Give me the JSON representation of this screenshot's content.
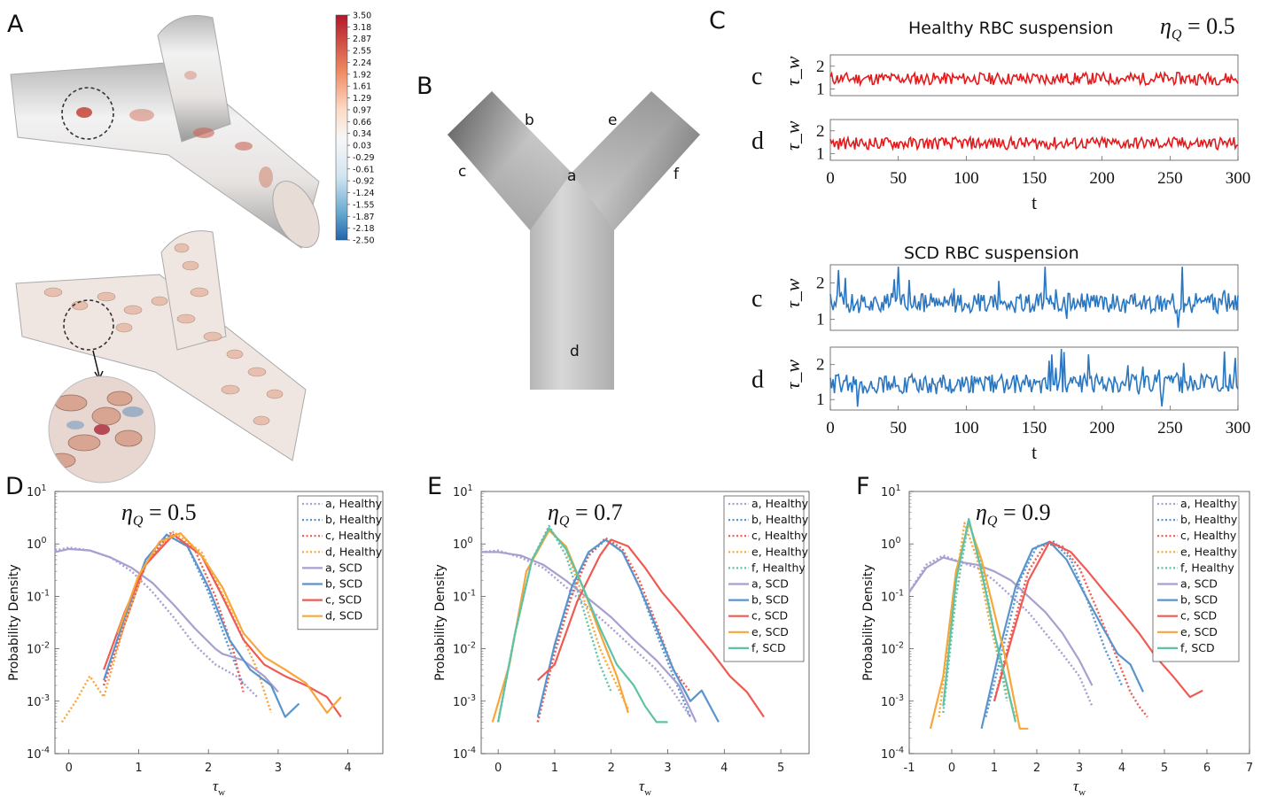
{
  "panel_labels": [
    "A",
    "B",
    "C",
    "D",
    "E",
    "F"
  ],
  "colorbar": {
    "ticks": [
      "3.50",
      "3.18",
      "2.87",
      "2.55",
      "2.24",
      "1.92",
      "1.61",
      "1.29",
      "0.97",
      "0.66",
      "0.34",
      "0.03",
      "-0.29",
      "-0.61",
      "-0.92",
      "-1.24",
      "-1.55",
      "-1.87",
      "-2.18",
      "-2.50"
    ]
  },
  "bifurcation": {
    "points": [
      "a",
      "b",
      "c",
      "d",
      "e",
      "f"
    ]
  },
  "timeseries": {
    "healthy_title": "Healthy RBC suspension",
    "scd_title": "SCD RBC suspension",
    "eta_label": "η_Q = 0.5",
    "ylabel": "τ_w",
    "xlabel": "t",
    "rows": [
      {
        "label": "c",
        "group": "Healthy",
        "color": "#e31a1c"
      },
      {
        "label": "d",
        "group": "Healthy",
        "color": "#e31a1c"
      },
      {
        "label": "c",
        "group": "SCD",
        "color": "#2b76c0"
      },
      {
        "label": "d",
        "group": "SCD",
        "color": "#2b76c0"
      }
    ],
    "xticks": [
      "0",
      "50",
      "100",
      "150",
      "200",
      "250",
      "300"
    ],
    "yticks": [
      "1",
      "2"
    ]
  },
  "colors": {
    "a": "#a89fd0",
    "b": "#5a94cd",
    "c": "#ef5a52",
    "d": "#f6a63a",
    "e": "#f6a63a",
    "f": "#5ec3a6",
    "healthy_ts": "#e31a1c",
    "scd_ts": "#2b76c0"
  },
  "chart_data": [
    {
      "type": "line",
      "panel": "D",
      "title": "η_Q = 0.5",
      "xlabel": "τ_w",
      "ylabel": "Probability Density",
      "yscale": "log",
      "xlim": [
        -0.2,
        4.5
      ],
      "ylim": [
        0.0001,
        10
      ],
      "xticks": [
        "0",
        "1",
        "2",
        "3",
        "4"
      ],
      "yticks": [
        "10^-4",
        "10^-3",
        "10^-2",
        "10^-1",
        "10^0",
        "10^1"
      ],
      "legend": [
        "a, Healthy",
        "b, Healthy",
        "c, Healthy",
        "d, Healthy",
        "a, SCD",
        "b, SCD",
        "c, SCD",
        "d, SCD"
      ],
      "series": [
        {
          "name": "a, Healthy",
          "key": "a",
          "style": "dotted",
          "x": [
            -0.2,
            0,
            0.3,
            0.6,
            0.9,
            1.2,
            1.5,
            1.8,
            2.1,
            2.4,
            2.7
          ],
          "y": [
            0.75,
            0.85,
            0.75,
            0.55,
            0.3,
            0.12,
            0.04,
            0.012,
            0.005,
            0.003,
            0.0012
          ]
        },
        {
          "name": "b, Healthy",
          "key": "b",
          "style": "dotted",
          "x": [
            0.5,
            0.8,
            1.1,
            1.4,
            1.7,
            2.0,
            2.3,
            2.5
          ],
          "y": [
            0.002,
            0.03,
            0.4,
            1.5,
            0.9,
            0.12,
            0.01,
            0.002
          ]
        },
        {
          "name": "c, Healthy",
          "key": "c",
          "style": "dotted",
          "x": [
            0.5,
            0.8,
            1.1,
            1.45,
            1.8,
            2.1,
            2.35,
            2.5
          ],
          "y": [
            0.002,
            0.03,
            0.4,
            1.6,
            0.8,
            0.1,
            0.01,
            0.0015
          ]
        },
        {
          "name": "d, Healthy",
          "key": "d",
          "style": "dotted",
          "x": [
            -0.1,
            0.1,
            0.3,
            0.5,
            0.8,
            1.1,
            1.5,
            1.9,
            2.3,
            2.7,
            2.9
          ],
          "y": [
            0.0004,
            0.001,
            0.003,
            0.0012,
            0.03,
            0.4,
            1.7,
            0.7,
            0.06,
            0.004,
            0.0006
          ]
        },
        {
          "name": "a, SCD",
          "key": "a",
          "style": "solid",
          "x": [
            -0.2,
            0,
            0.3,
            0.6,
            0.9,
            1.2,
            1.5,
            1.8,
            2.1,
            2.2,
            2.5,
            2.8,
            3.0
          ],
          "y": [
            0.7,
            0.8,
            0.75,
            0.55,
            0.35,
            0.18,
            0.07,
            0.025,
            0.01,
            0.008,
            0.006,
            0.003,
            0.0015
          ]
        },
        {
          "name": "b, SCD",
          "key": "b",
          "style": "solid",
          "x": [
            0.5,
            0.8,
            1.1,
            1.4,
            1.7,
            2.0,
            2.3,
            2.6,
            2.9,
            3.1,
            3.3
          ],
          "y": [
            0.0025,
            0.04,
            0.5,
            1.5,
            0.9,
            0.15,
            0.015,
            0.004,
            0.002,
            0.0005,
            0.0009
          ]
        },
        {
          "name": "c, SCD",
          "key": "c",
          "style": "solid",
          "x": [
            0.5,
            0.8,
            1.1,
            1.5,
            1.9,
            2.2,
            2.5,
            2.8,
            3.1,
            3.4,
            3.7,
            3.9
          ],
          "y": [
            0.004,
            0.05,
            0.4,
            1.5,
            0.6,
            0.1,
            0.015,
            0.005,
            0.003,
            0.002,
            0.0012,
            0.0005
          ]
        },
        {
          "name": "d, SCD",
          "key": "d",
          "style": "solid",
          "x": [
            0.7,
            1.0,
            1.3,
            1.6,
            1.9,
            2.2,
            2.5,
            2.8,
            3.1,
            3.4,
            3.7,
            3.9
          ],
          "y": [
            0.02,
            0.25,
            1.1,
            1.6,
            0.6,
            0.15,
            0.02,
            0.007,
            0.004,
            0.0022,
            0.0006,
            0.0012
          ]
        }
      ]
    },
    {
      "type": "line",
      "panel": "E",
      "title": "η_Q = 0.7",
      "xlabel": "τ_w",
      "ylabel": "Probability Density",
      "yscale": "log",
      "xlim": [
        -0.3,
        5.5
      ],
      "ylim": [
        0.0001,
        10
      ],
      "xticks": [
        "0",
        "1",
        "2",
        "3",
        "4",
        "5"
      ],
      "yticks": [
        "10^-4",
        "10^-3",
        "10^-2",
        "10^-1",
        "10^0",
        "10^1"
      ],
      "legend": [
        "a, Healthy",
        "b, Healthy",
        "c, Healthy",
        "e, Healthy",
        "f, Healthy",
        "a, SCD",
        "b, SCD",
        "c, SCD",
        "e, SCD",
        "f, SCD"
      ],
      "series": [
        {
          "name": "a, Healthy",
          "key": "a",
          "style": "dotted",
          "x": [
            -0.3,
            0,
            0.4,
            0.8,
            1.2,
            1.6,
            2.0,
            2.4,
            2.8,
            3.1,
            3.4
          ],
          "y": [
            0.7,
            0.75,
            0.55,
            0.35,
            0.15,
            0.06,
            0.025,
            0.01,
            0.004,
            0.0015,
            0.0005
          ]
        },
        {
          "name": "b, Healthy",
          "key": "b",
          "style": "dotted",
          "x": [
            0.7,
            1.0,
            1.3,
            1.6,
            1.9,
            2.2,
            2.5,
            2.8,
            3.1,
            3.4
          ],
          "y": [
            0.0004,
            0.01,
            0.12,
            0.6,
            1.2,
            0.7,
            0.15,
            0.02,
            0.003,
            0.0005
          ]
        },
        {
          "name": "c, Healthy",
          "key": "c",
          "style": "dotted",
          "x": [
            0.7,
            1.0,
            1.3,
            1.6,
            1.9,
            2.2,
            2.5,
            2.8,
            3.1,
            3.4
          ],
          "y": [
            0.0004,
            0.008,
            0.1,
            0.6,
            1.3,
            0.8,
            0.2,
            0.03,
            0.004,
            0.0015
          ]
        },
        {
          "name": "e, Healthy",
          "key": "e",
          "style": "dotted",
          "x": [
            0,
            0.3,
            0.6,
            0.9,
            1.2,
            1.5,
            1.8,
            2.1,
            2.3
          ],
          "y": [
            0.0004,
            0.02,
            0.5,
            2.0,
            0.8,
            0.1,
            0.01,
            0.002,
            0.0007
          ]
        },
        {
          "name": "f, Healthy",
          "key": "f",
          "style": "dotted",
          "x": [
            0,
            0.3,
            0.6,
            0.9,
            1.2,
            1.5,
            1.8,
            2.0
          ],
          "y": [
            0.0004,
            0.02,
            0.5,
            2.2,
            0.6,
            0.06,
            0.005,
            0.0015
          ]
        },
        {
          "name": "a, SCD",
          "key": "a",
          "style": "solid",
          "x": [
            -0.3,
            0,
            0.4,
            0.8,
            1.2,
            1.6,
            2.0,
            2.4,
            2.8,
            3.2,
            3.5
          ],
          "y": [
            0.7,
            0.7,
            0.6,
            0.4,
            0.2,
            0.09,
            0.04,
            0.015,
            0.006,
            0.002,
            0.0004
          ]
        },
        {
          "name": "b, SCD",
          "key": "b",
          "style": "solid",
          "x": [
            0.7,
            1.0,
            1.3,
            1.6,
            1.9,
            2.2,
            2.5,
            2.8,
            3.1,
            3.4,
            3.6,
            3.9
          ],
          "y": [
            0.0005,
            0.012,
            0.15,
            0.7,
            1.2,
            0.7,
            0.15,
            0.025,
            0.004,
            0.001,
            0.0016,
            0.0004
          ]
        },
        {
          "name": "c, SCD",
          "key": "c",
          "style": "solid",
          "x": [
            0.7,
            1.0,
            1.4,
            1.8,
            2.0,
            2.3,
            2.6,
            2.9,
            3.2,
            3.5,
            3.8,
            4.1,
            4.4,
            4.7
          ],
          "y": [
            0.0025,
            0.005,
            0.08,
            0.6,
            1.2,
            0.9,
            0.35,
            0.12,
            0.05,
            0.02,
            0.008,
            0.003,
            0.0015,
            0.0005
          ]
        },
        {
          "name": "e, SCD",
          "key": "e",
          "style": "solid",
          "x": [
            -0.1,
            0.2,
            0.5,
            0.9,
            1.2,
            1.5,
            1.8,
            2.1,
            2.3
          ],
          "y": [
            0.0004,
            0.005,
            0.3,
            1.8,
            0.9,
            0.15,
            0.02,
            0.003,
            0.0006
          ]
        },
        {
          "name": "f, SCD",
          "key": "f",
          "style": "solid",
          "x": [
            0,
            0.3,
            0.6,
            0.9,
            1.2,
            1.5,
            1.8,
            2.1,
            2.4,
            2.6,
            2.8,
            3.0
          ],
          "y": [
            0.0004,
            0.02,
            0.5,
            2.0,
            0.8,
            0.15,
            0.025,
            0.005,
            0.002,
            0.0008,
            0.0004,
            0.0004
          ]
        }
      ]
    },
    {
      "type": "line",
      "panel": "F",
      "title": "η_Q = 0.9",
      "xlabel": "τ_w",
      "ylabel": "Probability Density",
      "yscale": "log",
      "xlim": [
        -1,
        7
      ],
      "ylim": [
        0.0001,
        10
      ],
      "xticks": [
        "-1",
        "0",
        "1",
        "2",
        "3",
        "4",
        "5",
        "6",
        "7"
      ],
      "yticks": [
        "10^-4",
        "10^-3",
        "10^-2",
        "10^-1",
        "10^0",
        "10^1"
      ],
      "legend": [
        "a, Healthy",
        "b, Healthy",
        "c, Healthy",
        "e, Healthy",
        "f, Healthy",
        "a, SCD",
        "b, SCD",
        "c, SCD",
        "e, SCD",
        "f, SCD"
      ],
      "series": [
        {
          "name": "a, Healthy",
          "key": "a",
          "style": "dotted",
          "x": [
            -1,
            -0.6,
            -0.2,
            0.2,
            0.6,
            1.0,
            1.4,
            1.8,
            2.2,
            2.6,
            3.0,
            3.3
          ],
          "y": [
            0.12,
            0.4,
            0.6,
            0.45,
            0.35,
            0.2,
            0.1,
            0.05,
            0.02,
            0.008,
            0.003,
            0.0008
          ]
        },
        {
          "name": "b, Healthy",
          "key": "b",
          "style": "dotted",
          "x": [
            0.8,
            1.2,
            1.6,
            2.0,
            2.4,
            2.8,
            3.2,
            3.6,
            4.0
          ],
          "y": [
            0.0005,
            0.01,
            0.2,
            0.9,
            1.1,
            0.5,
            0.08,
            0.01,
            0.002
          ]
        },
        {
          "name": "c, Healthy",
          "key": "c",
          "style": "dotted",
          "x": [
            1.0,
            1.4,
            1.8,
            2.2,
            2.6,
            3.0,
            3.4,
            3.8,
            4.2,
            4.4,
            4.6
          ],
          "y": [
            0.001,
            0.02,
            0.3,
            1.0,
            0.9,
            0.35,
            0.06,
            0.01,
            0.0015,
            0.0008,
            0.0005
          ]
        },
        {
          "name": "e, Healthy",
          "key": "e",
          "style": "dotted",
          "x": [
            -0.3,
            0,
            0.3,
            0.6,
            0.9,
            1.2,
            1.5
          ],
          "y": [
            0.0005,
            0.05,
            2.5,
            0.5,
            0.03,
            0.003,
            0.0005
          ]
        },
        {
          "name": "f, Healthy",
          "key": "f",
          "style": "dotted",
          "x": [
            -0.2,
            0.1,
            0.4,
            0.7,
            1.0,
            1.3
          ],
          "y": [
            0.0006,
            0.1,
            2.8,
            0.4,
            0.02,
            0.001
          ]
        },
        {
          "name": "a, SCD",
          "key": "a",
          "style": "solid",
          "x": [
            -1,
            -0.6,
            -0.2,
            0.2,
            0.6,
            1.0,
            1.4,
            1.8,
            2.2,
            2.6,
            3.0,
            3.3
          ],
          "y": [
            0.12,
            0.35,
            0.55,
            0.45,
            0.4,
            0.3,
            0.2,
            0.1,
            0.05,
            0.02,
            0.006,
            0.002
          ]
        },
        {
          "name": "b, SCD",
          "key": "b",
          "style": "solid",
          "x": [
            0.7,
            1.1,
            1.5,
            1.9,
            2.3,
            2.7,
            3.1,
            3.5,
            3.9,
            4.2,
            4.5
          ],
          "y": [
            0.0003,
            0.008,
            0.15,
            0.8,
            1.1,
            0.5,
            0.12,
            0.03,
            0.008,
            0.005,
            0.0015
          ]
        },
        {
          "name": "c, SCD",
          "key": "c",
          "style": "solid",
          "x": [
            1.0,
            1.4,
            1.8,
            2.3,
            2.8,
            3.2,
            3.6,
            4.0,
            4.4,
            4.8,
            5.2,
            5.6,
            5.9
          ],
          "y": [
            0.001,
            0.015,
            0.2,
            1.1,
            0.7,
            0.3,
            0.12,
            0.05,
            0.02,
            0.007,
            0.003,
            0.0012,
            0.0016
          ]
        },
        {
          "name": "e, SCD",
          "key": "e",
          "style": "solid",
          "x": [
            -0.5,
            -0.2,
            0.1,
            0.4,
            0.7,
            1.0,
            1.3,
            1.6,
            1.8
          ],
          "y": [
            0.0003,
            0.003,
            0.3,
            2.5,
            0.5,
            0.05,
            0.005,
            0.0003,
            0.0003
          ]
        },
        {
          "name": "f, SCD",
          "key": "f",
          "style": "solid",
          "x": [
            -0.2,
            0.1,
            0.4,
            0.7,
            1.0,
            1.3,
            1.5
          ],
          "y": [
            0.0008,
            0.2,
            3.0,
            0.3,
            0.02,
            0.002,
            0.0004
          ]
        }
      ]
    }
  ]
}
